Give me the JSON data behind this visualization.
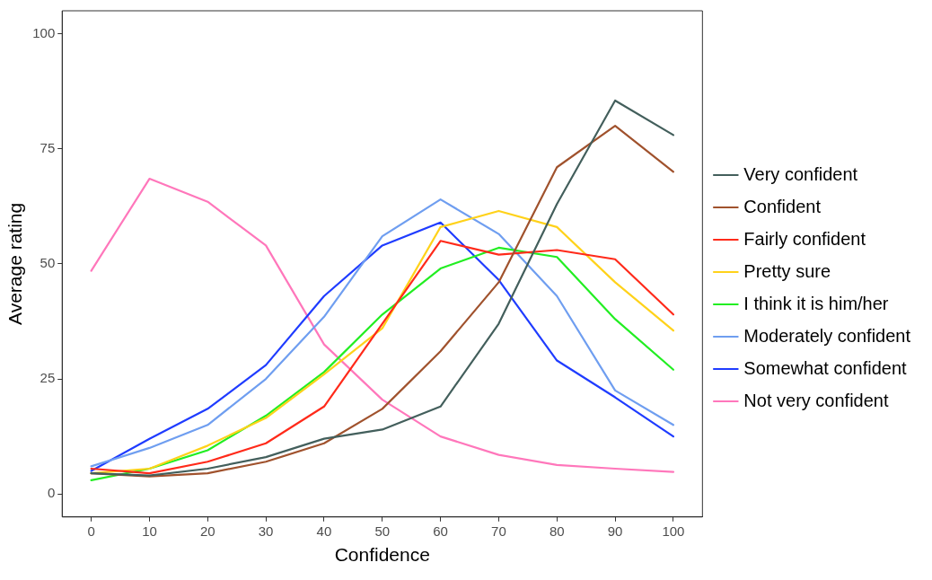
{
  "chart_data": {
    "type": "line",
    "xlabel": "Confidence",
    "ylabel": "Average rating",
    "x": [
      0,
      10,
      20,
      30,
      40,
      50,
      60,
      70,
      80,
      90,
      100
    ],
    "xlim": [
      -5,
      105
    ],
    "xticks": [
      0,
      10,
      20,
      30,
      40,
      50,
      60,
      70,
      80,
      90,
      100
    ],
    "ylim": [
      -5,
      105
    ],
    "yticks": [
      0,
      25,
      50,
      75,
      100
    ],
    "grid": false,
    "legend": "right",
    "marker": "none",
    "line_style": "solid",
    "series": [
      {
        "name": "Very confident",
        "color": "#435f5c",
        "values": [
          4.5,
          4,
          5.5,
          8,
          12,
          14,
          19,
          37,
          63,
          85.5,
          78
        ]
      },
      {
        "name": "Confident",
        "color": "#a0522d",
        "values": [
          4.5,
          3.8,
          4.5,
          7,
          11,
          18.5,
          31,
          46,
          71,
          80,
          70
        ]
      },
      {
        "name": "Fairly confident",
        "color": "#ff2a1a",
        "values": [
          5.5,
          4.5,
          7,
          11,
          19,
          37,
          55,
          52,
          53,
          51,
          39
        ]
      },
      {
        "name": "Pretty sure",
        "color": "#ffd21a",
        "values": [
          4.5,
          5.5,
          10.5,
          16.5,
          26,
          36,
          58,
          61.5,
          58,
          46,
          35.5
        ]
      },
      {
        "name": "I think it is him/her",
        "color": "#22ee22",
        "values": [
          3,
          5.5,
          9.5,
          17,
          26.5,
          39,
          49,
          53.5,
          51.5,
          38,
          27
        ]
      },
      {
        "name": "Moderately confident",
        "color": "#6f9ef0",
        "values": [
          6,
          10,
          15,
          25,
          38.5,
          56,
          64,
          56.5,
          43,
          22.5,
          15
        ]
      },
      {
        "name": "Somewhat confident",
        "color": "#1f3cff",
        "values": [
          5,
          12,
          18.5,
          28,
          43,
          54,
          59,
          46.5,
          29,
          21,
          12.5
        ]
      },
      {
        "name": "Not very confident",
        "color": "#ff77bb",
        "values": [
          48.5,
          68.5,
          63.5,
          54,
          32.5,
          20.5,
          12.5,
          8.5,
          6.3,
          5.5,
          4.8
        ]
      }
    ]
  }
}
